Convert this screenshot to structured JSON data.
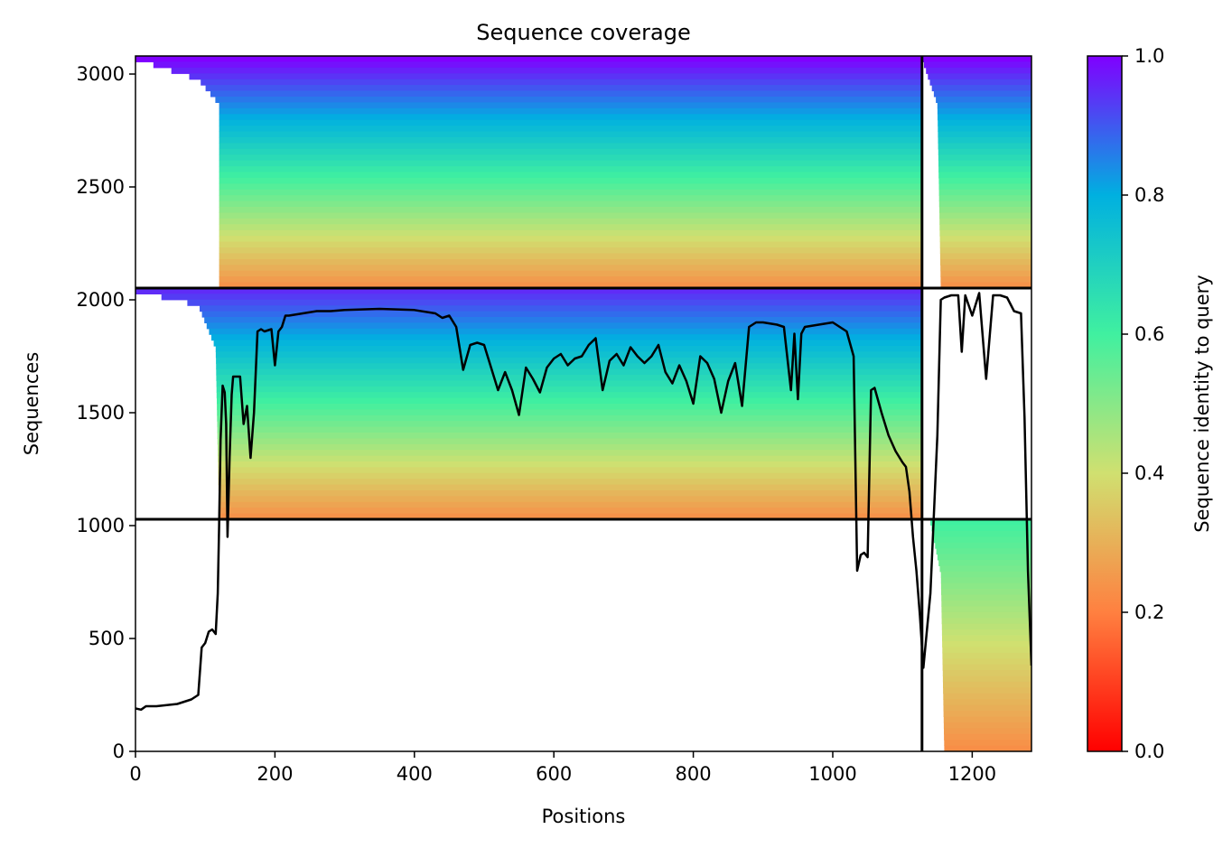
{
  "chart_data": {
    "type": "heatmap",
    "title": "Sequence coverage",
    "xlabel": "Positions",
    "ylabel": "Sequences",
    "xlim": [
      0,
      1285
    ],
    "ylim": [
      0,
      3080
    ],
    "xticks": [
      0,
      200,
      400,
      600,
      800,
      1000,
      1200
    ],
    "yticks": [
      0,
      500,
      1000,
      1500,
      2000,
      2500,
      3000
    ],
    "colormap": "rainbow_r",
    "colorbar": {
      "label": "Sequence identity to query",
      "range": [
        0.0,
        1.0
      ],
      "ticks": [
        "0.0",
        "0.2",
        "0.4",
        "0.6",
        "0.8",
        "1.0"
      ],
      "colors": [
        "#ff0000",
        "#ff8040",
        "#d0e070",
        "#40f0a0",
        "#00b0e0",
        "#8000ff"
      ]
    },
    "block_dividers": {
      "horizontal_at_sequence": [
        1028,
        2052
      ],
      "vertical_at_position": 1128
    },
    "blocks": [
      {
        "x_range": [
          0,
          1128
        ],
        "y_range": [
          2052,
          3080
        ],
        "coverage_starts": [
          [
            3080,
            0
          ],
          [
            2990,
            90
          ],
          [
            2880,
            120
          ],
          [
            2600,
            120
          ],
          [
            2052,
            120
          ]
        ],
        "identity_range": [
          0.22,
          1.0
        ]
      },
      {
        "x_range": [
          1128,
          1285
        ],
        "y_range": [
          2052,
          3080
        ],
        "coverage_starts": [
          [
            3080,
            1128
          ],
          [
            2880,
            1150
          ],
          [
            2052,
            1155
          ]
        ],
        "identity_range": [
          0.22,
          1.0
        ]
      },
      {
        "x_range": [
          0,
          1128
        ],
        "y_range": [
          1028,
          2052
        ],
        "coverage_starts": [
          [
            2052,
            0
          ],
          [
            1990,
            90
          ],
          [
            1800,
            115
          ],
          [
            1028,
            120
          ]
        ],
        "identity_range": [
          0.22,
          0.95
        ]
      },
      {
        "x_range": [
          1128,
          1285
        ],
        "y_range": [
          0,
          1028
        ],
        "coverage_starts": [
          [
            1028,
            1140
          ],
          [
            800,
            1155
          ],
          [
            0,
            1160
          ]
        ],
        "identity_range": [
          0.22,
          0.6
        ]
      }
    ],
    "series": [
      {
        "name": "coverage",
        "color": "#000000",
        "x": [
          0,
          8,
          15,
          30,
          60,
          80,
          90,
          95,
          100,
          105,
          110,
          115,
          118,
          120,
          122,
          125,
          128,
          130,
          132,
          135,
          138,
          140,
          145,
          150,
          155,
          160,
          165,
          170,
          175,
          180,
          185,
          195,
          200,
          205,
          210,
          215,
          220,
          240,
          260,
          280,
          300,
          350,
          400,
          430,
          440,
          450,
          460,
          470,
          480,
          490,
          500,
          510,
          520,
          530,
          540,
          550,
          560,
          570,
          580,
          590,
          600,
          610,
          620,
          630,
          640,
          650,
          660,
          670,
          680,
          690,
          700,
          710,
          720,
          730,
          740,
          750,
          760,
          770,
          780,
          790,
          800,
          810,
          820,
          830,
          840,
          850,
          860,
          870,
          880,
          890,
          900,
          920,
          930,
          940,
          945,
          950,
          955,
          960,
          980,
          1000,
          1010,
          1020,
          1030,
          1035,
          1040,
          1045,
          1050,
          1055,
          1060,
          1070,
          1080,
          1090,
          1100,
          1105,
          1110,
          1115,
          1120,
          1125,
          1130,
          1140,
          1150,
          1155,
          1160,
          1170,
          1180,
          1185,
          1190,
          1200,
          1210,
          1220,
          1230,
          1240,
          1250,
          1260,
          1270,
          1275,
          1280,
          1285
        ],
        "y": [
          190,
          185,
          200,
          200,
          210,
          230,
          250,
          460,
          480,
          530,
          540,
          520,
          700,
          1000,
          1380,
          1620,
          1590,
          1450,
          950,
          1300,
          1580,
          1660,
          1660,
          1660,
          1450,
          1530,
          1300,
          1500,
          1860,
          1870,
          1860,
          1870,
          1710,
          1860,
          1880,
          1930,
          1930,
          1940,
          1950,
          1950,
          1955,
          1960,
          1955,
          1940,
          1920,
          1930,
          1880,
          1690,
          1800,
          1810,
          1800,
          1700,
          1600,
          1680,
          1600,
          1490,
          1700,
          1650,
          1590,
          1700,
          1740,
          1760,
          1710,
          1740,
          1750,
          1800,
          1830,
          1600,
          1730,
          1760,
          1710,
          1790,
          1750,
          1720,
          1750,
          1800,
          1680,
          1630,
          1710,
          1640,
          1540,
          1750,
          1720,
          1650,
          1500,
          1640,
          1720,
          1530,
          1880,
          1900,
          1900,
          1890,
          1880,
          1600,
          1850,
          1560,
          1850,
          1880,
          1890,
          1900,
          1880,
          1860,
          1750,
          800,
          870,
          880,
          860,
          1600,
          1610,
          1500,
          1400,
          1330,
          1280,
          1260,
          1150,
          950,
          800,
          600,
          370,
          700,
          1400,
          2000,
          2010,
          2020,
          2020,
          1770,
          2020,
          1930,
          2030,
          1650,
          2020,
          2020,
          2010,
          1950,
          1940,
          1480,
          800,
          380
        ]
      }
    ]
  }
}
